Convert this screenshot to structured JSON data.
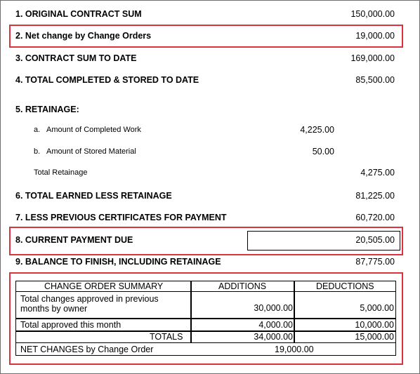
{
  "lines": {
    "l1": {
      "label": "1. ORIGINAL CONTRACT SUM",
      "value": "150,000.00"
    },
    "l2": {
      "label": "2. Net change by Change Orders",
      "value": "19,000.00"
    },
    "l3": {
      "label": "3. CONTRACT SUM TO DATE",
      "value": "169,000.00"
    },
    "l4": {
      "label": "4. TOTAL COMPLETED & STORED TO DATE",
      "value": "85,500.00"
    },
    "l5": {
      "label": "5. RETAINAGE:"
    },
    "l5a": {
      "prefix": "a.",
      "label": "Amount of Completed Work",
      "value": "4,225.00"
    },
    "l5b": {
      "prefix": "b.",
      "label": "Amount of Stored Material",
      "value": "50.00"
    },
    "l5t": {
      "label": "Total Retainage",
      "value": "4,275.00"
    },
    "l6": {
      "label": "6. TOTAL EARNED LESS RETAINAGE",
      "value": "81,225.00"
    },
    "l7": {
      "label": "7. LESS PREVIOUS CERTIFICATES FOR PAYMENT",
      "value": "60,720.00"
    },
    "l8": {
      "label": "8. CURRENT PAYMENT DUE",
      "value": "20,505.00"
    },
    "l9": {
      "label": "9. BALANCE TO FINISH, INCLUDING RETAINAGE",
      "value": "87,775.00"
    }
  },
  "change_orders": {
    "header": {
      "summary": "CHANGE ORDER SUMMARY",
      "additions": "ADDITIONS",
      "deductions": "DEDUCTIONS"
    },
    "prev": {
      "label": "Total changes approved in previous months by owner",
      "additions": "30,000.00",
      "deductions": "5,000.00"
    },
    "month": {
      "label": "Total approved this month",
      "additions": "4,000.00",
      "deductions": "10,000.00"
    },
    "totals": {
      "label": "TOTALS",
      "additions": "34,000.00",
      "deductions": "15,000.00"
    },
    "net": {
      "label": "NET CHANGES by Change Order",
      "value": "19,000.00"
    }
  },
  "colors": {
    "highlight": "#d9343d",
    "border": "#000000",
    "frame": "#6e6e6e"
  }
}
